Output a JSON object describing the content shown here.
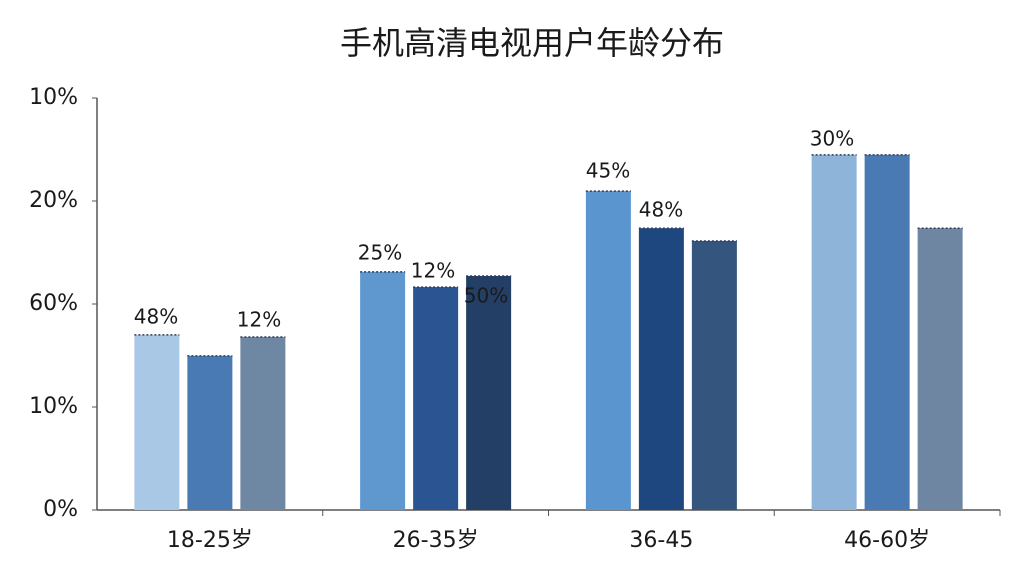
{
  "chart_data": {
    "type": "bar",
    "title": "手机高清电视用户年龄分布",
    "categories": [
      "18-25岁",
      "26-35岁",
      "36-45",
      "46-60岁"
    ],
    "y_axis_labels": [
      "10%",
      "20%",
      "60%",
      "10%",
      "0%"
    ],
    "ylim": [
      0,
      100
    ],
    "series": [
      {
        "values": [
          42.5,
          57.8,
          77.4,
          86.2
        ],
        "colors": [
          "#a9c8e6",
          "#5f97cf",
          "#5b95d0",
          "#8fb4da"
        ]
      },
      {
        "values": [
          37.4,
          54.1,
          68.4,
          86.2
        ],
        "colors": [
          "#4a7ab3",
          "#2a5592",
          "#1f477f",
          "#4a7ab3"
        ]
      },
      {
        "values": [
          42.0,
          56.8,
          65.3,
          68.4
        ],
        "colors": [
          "#6e87a3",
          "#243f66",
          "#34557d",
          "#6f86a2"
        ]
      }
    ],
    "annotations": [
      "48%",
      "12%",
      "25%",
      "12%",
      "50%",
      "45%",
      "48%",
      "30%"
    ]
  }
}
